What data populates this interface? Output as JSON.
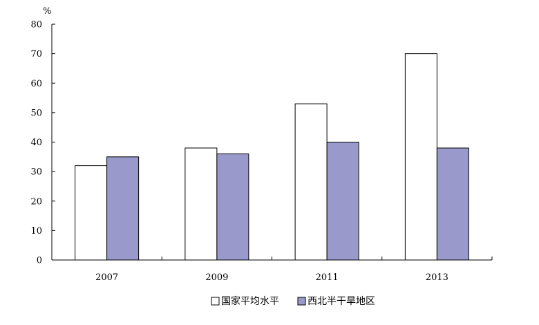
{
  "chart_data": {
    "type": "bar",
    "ylabel": "%",
    "ylim": [
      0,
      80
    ],
    "y_ticks": [
      0,
      10,
      20,
      30,
      40,
      50,
      60,
      70,
      80
    ],
    "categories": [
      "2007",
      "2009",
      "2011",
      "2013"
    ],
    "series": [
      {
        "name": "国家平均水平",
        "color": "#ffffff",
        "values": [
          32,
          38,
          53,
          70
        ]
      },
      {
        "name": "西北半干旱地区",
        "color": "#9999cc",
        "values": [
          35,
          36,
          40,
          38
        ]
      }
    ],
    "grid": false,
    "legend_position": "bottom-center"
  }
}
